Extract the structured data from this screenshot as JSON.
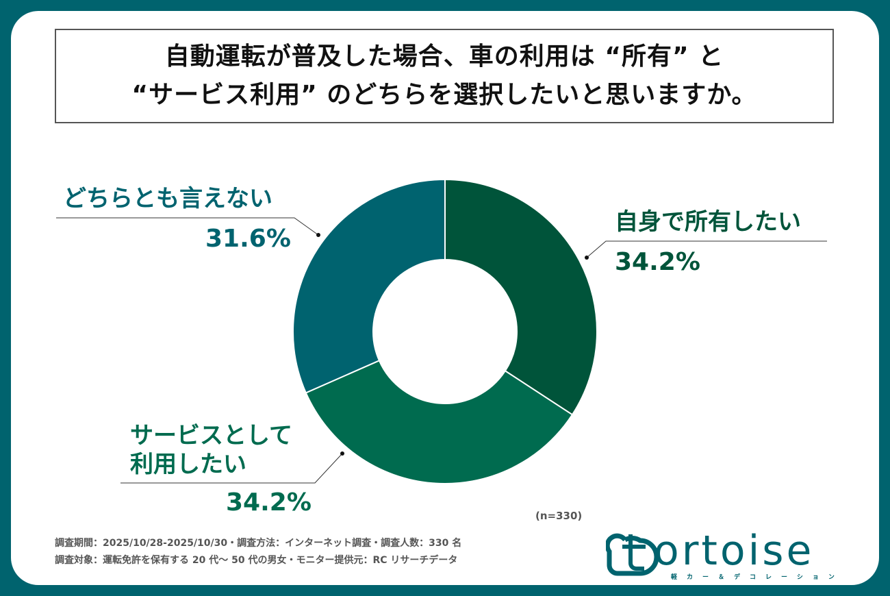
{
  "title": {
    "line1": "自動運転が普及した場合、車の利用は “所有” と",
    "line2": "“サービス利用” のどちらを選択したいと思いますか。"
  },
  "chart_data": {
    "type": "pie",
    "donut": true,
    "title": "自動運転が普及した場合、車の利用は “所有” と “サービス利用” のどちらを選択したいと思いますか。",
    "slices": [
      {
        "label": "自身で所有したい",
        "value": 34.2,
        "display": "34.2%",
        "color": "#00543a"
      },
      {
        "label": "サービスとして利用したい",
        "label_lines": [
          "サービスとして",
          "利用したい"
        ],
        "value": 34.2,
        "display": "34.2%",
        "color": "#006b4f"
      },
      {
        "label": "どちらとも言えない",
        "value": 31.6,
        "display": "31.6%",
        "color": "#00636f"
      }
    ],
    "start": "top",
    "direction": "clockwise",
    "sample": "(n=330)"
  },
  "footer": {
    "line1": "調査期間：2025/10/28-2025/10/30・調査方法：インターネット調査・調査人数：330 名",
    "line2": "調査対象：運転免許を保有する 20 代～ 50 代の男女・モニター提供元：RC リサーチデータ"
  },
  "logo": {
    "text": "ortoise",
    "sub": "軽カー＆デコレーション",
    "color": "#00636e"
  },
  "colors": {
    "background": "#00636e",
    "card": "#ffffff"
  }
}
